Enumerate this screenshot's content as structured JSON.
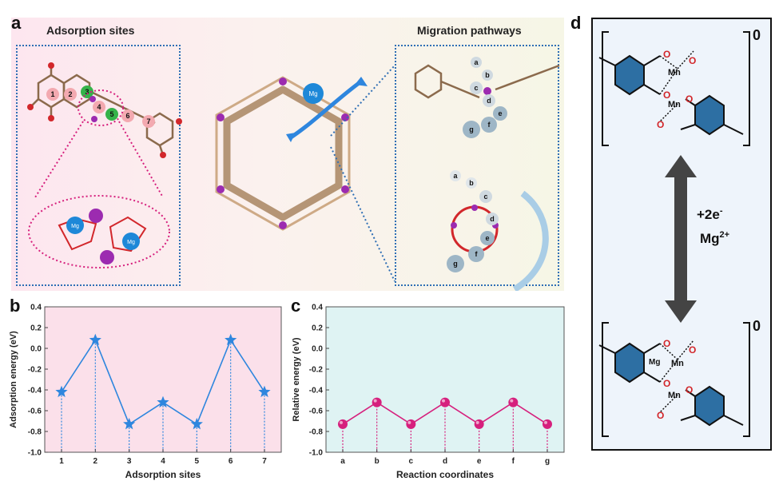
{
  "panel_labels": {
    "a": "a",
    "b": "b",
    "c": "c",
    "d": "d"
  },
  "panel_a": {
    "left_title": "Adsorption sites",
    "right_title": "Migration pathways",
    "site_numbers": [
      "1",
      "2",
      "3",
      "4",
      "5",
      "6",
      "7"
    ],
    "path_letters": [
      "a",
      "b",
      "c",
      "d",
      "e",
      "f",
      "g"
    ],
    "ion_label": "Mg",
    "ion_charge": "2+"
  },
  "panel_d": {
    "state_top": "0",
    "state_bottom": "0",
    "reaction_line1": "+2e",
    "reaction_line1_sup": "-",
    "reaction_line2": "Mg",
    "reaction_line2_sup": "2+",
    "atom_mn": "Mn",
    "atom_mg": "Mg",
    "atom_o": "O"
  },
  "chart_data": [
    {
      "type": "line",
      "panel": "b",
      "xlabel": "Adsorption sites",
      "ylabel": "Adsorption energy (eV)",
      "categories": [
        "1",
        "2",
        "3",
        "4",
        "5",
        "6",
        "7"
      ],
      "values": [
        -0.42,
        0.08,
        -0.73,
        -0.52,
        -0.73,
        0.08,
        -0.42
      ],
      "ylim": [
        -1.0,
        0.4
      ],
      "yticks": [
        "0.4",
        "0.2",
        "0.0",
        "-0.2",
        "-0.4",
        "-0.6",
        "-0.8",
        "-1.0"
      ],
      "marker": "star",
      "color": "#2e86de",
      "background": "#fbe0ea"
    },
    {
      "type": "line",
      "panel": "c",
      "xlabel": "Reaction coordinates",
      "ylabel": "Relative energy (eV)",
      "categories": [
        "a",
        "b",
        "c",
        "d",
        "e",
        "f",
        "g"
      ],
      "values": [
        -0.73,
        -0.52,
        -0.73,
        -0.52,
        -0.73,
        -0.52,
        -0.73
      ],
      "ylim": [
        -1.0,
        0.4
      ],
      "yticks": [
        "0.4",
        "0.2",
        "0.0",
        "-0.2",
        "-0.4",
        "-0.6",
        "-0.8",
        "-1.0"
      ],
      "marker": "circle",
      "color": "#d6207d",
      "background": "#dff3f3"
    }
  ]
}
